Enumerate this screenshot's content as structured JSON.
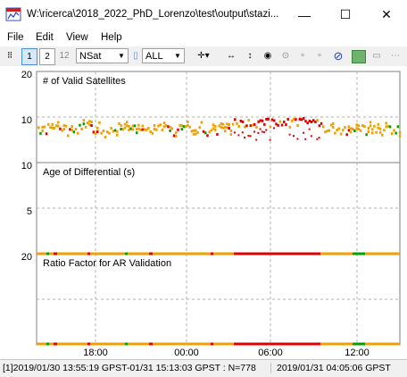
{
  "window": {
    "title": "W:\\ricerca\\2018_2022_PhD_Lorenzo\\test\\output\\stazi...",
    "minimize": "—",
    "maximize": "☐",
    "close": "✕"
  },
  "menu": [
    "File",
    "Edit",
    "View",
    "Help"
  ],
  "toolbar": {
    "btn1": "1",
    "btn2": "2",
    "btn12": "12",
    "plot_type": "NSat",
    "sat_select": "ALL"
  },
  "plots": [
    {
      "label": "# of Valid Satellites",
      "ticks": [
        "20",
        "10"
      ]
    },
    {
      "label": "Age of Differential (s)",
      "ticks": [
        "10",
        "5"
      ]
    },
    {
      "label": "Ratio Factor for AR Validation",
      "ticks": [
        "20"
      ]
    }
  ],
  "x_ticks": [
    "18:00",
    "00:00",
    "06:00",
    "12:00"
  ],
  "colors": {
    "fix": "#00a000",
    "float": "#f0a000",
    "single": "#e00000",
    "grid": "#b0b0b0"
  },
  "status": {
    "range": "[1]2019/01/30 13:55:19 GPST-01/31 15:13:03 GPST : N=778",
    "time": "2019/01/31 04:05:06 GPST"
  }
}
